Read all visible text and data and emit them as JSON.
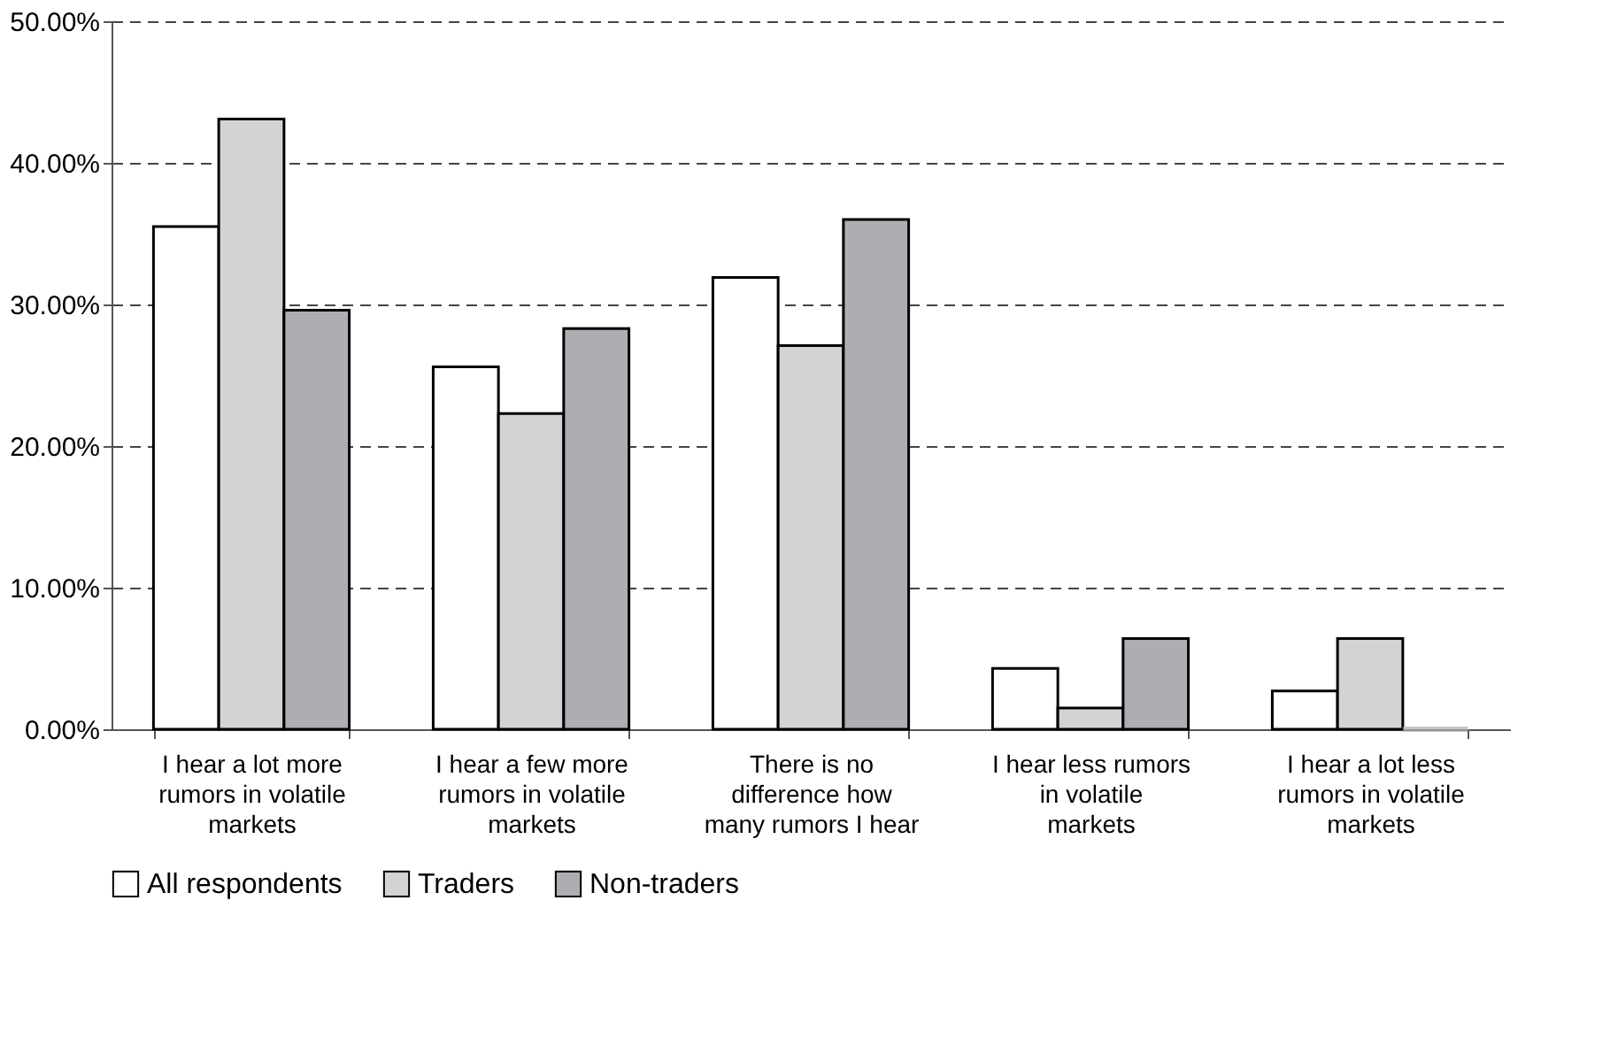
{
  "chart_data": {
    "type": "bar",
    "categories": [
      "I hear a lot more rumors in volatile markets",
      "I hear a few more rumors in volatile markets",
      "There is no difference how many rumors I hear",
      "I hear less rumors in volatile markets",
      "I hear a lot less rumors in volatile markets"
    ],
    "series": [
      {
        "name": "All respondents",
        "color": "#ffffff",
        "values": [
          35.5,
          25.6,
          31.9,
          4.3,
          2.7
        ]
      },
      {
        "name": "Traders",
        "color": "#d2d3d5",
        "values": [
          43.1,
          22.3,
          27.1,
          1.5,
          6.4
        ]
      },
      {
        "name": "Non-traders",
        "color": "#adaeb1",
        "values": [
          29.6,
          28.3,
          36.0,
          6.4,
          0
        ]
      }
    ],
    "ylim": [
      0,
      50
    ],
    "yticks": [
      {
        "value": 0,
        "label": "0.00%"
      },
      {
        "value": 10,
        "label": "10.00%"
      },
      {
        "value": 20,
        "label": "20.00%"
      },
      {
        "value": 30,
        "label": "30.00%"
      },
      {
        "value": 40,
        "label": "40.00%"
      },
      {
        "value": 50,
        "label": "50.00%"
      }
    ],
    "grid": "y",
    "legend": "bottom"
  }
}
